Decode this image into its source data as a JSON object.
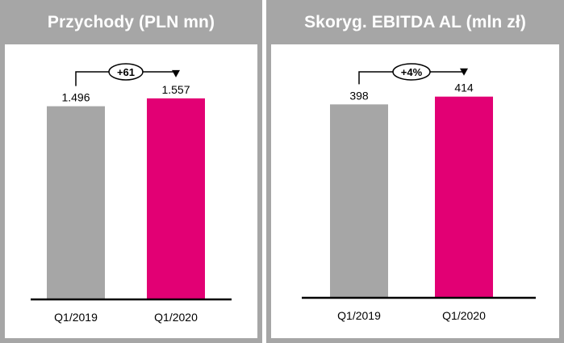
{
  "colors": {
    "frame": "#a6a6a6",
    "bar_prior": "#a6a6a6",
    "bar_current": "#e20074",
    "axis": "#000000"
  },
  "chart_data": [
    {
      "type": "bar",
      "title": "Przychody (PLN mn)",
      "categories": [
        "Q1/2019",
        "Q1/2020"
      ],
      "values": [
        1496,
        1557
      ],
      "value_labels": [
        "1.496",
        "1.557"
      ],
      "ylim": [
        0,
        1750
      ],
      "change_label": "+61",
      "xlabel": "",
      "ylabel": ""
    },
    {
      "type": "bar",
      "title": "Skoryg. EBITDA AL (mln zł)",
      "categories": [
        "Q1/2019",
        "Q1/2020"
      ],
      "values": [
        398,
        414
      ],
      "value_labels": [
        "398",
        "414"
      ],
      "ylim": [
        0,
        465
      ],
      "change_label": "+4%",
      "xlabel": "",
      "ylabel": ""
    }
  ]
}
